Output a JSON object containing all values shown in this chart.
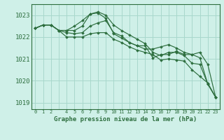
{
  "background_color": "#cff0e8",
  "grid_color": "#a8d8cc",
  "line_color": "#2d6e3e",
  "title": "Graphe pression niveau de la mer (hPa)",
  "xlim": [
    -0.5,
    23.5
  ],
  "ylim": [
    1018.7,
    1023.5
  ],
  "yticks": [
    1019,
    1020,
    1021,
    1022,
    1023
  ],
  "xtick_labels": [
    "0",
    "1",
    "2",
    "",
    "4",
    "5",
    "6",
    "7",
    "8",
    "9",
    "10",
    "11",
    "12",
    "13",
    "14",
    "15",
    "16",
    "17",
    "18",
    "19",
    "20",
    "21",
    "22",
    "23"
  ],
  "series": [
    [
      1022.4,
      1022.55,
      1022.55,
      1022.3,
      1022.3,
      1022.5,
      1022.75,
      1023.05,
      1023.1,
      1022.85,
      1022.15,
      1021.95,
      1021.75,
      1021.6,
      1021.6,
      1021.05,
      1021.2,
      1021.2,
      1021.35,
      1021.2,
      1021.2,
      1021.05,
      1019.85,
      1019.25
    ],
    [
      1022.4,
      1022.55,
      1022.55,
      1022.3,
      1022.3,
      1022.3,
      1022.5,
      1023.05,
      1023.15,
      1023.0,
      1022.55,
      1022.3,
      1022.1,
      1021.9,
      1021.7,
      1021.3,
      1021.15,
      1021.3,
      1021.3,
      1021.15,
      1020.8,
      1020.75,
      1019.85,
      1019.25
    ],
    [
      1022.4,
      1022.55,
      1022.55,
      1022.3,
      1022.2,
      1022.15,
      1022.2,
      1022.5,
      1022.65,
      1022.75,
      1022.2,
      1022.05,
      1021.75,
      1021.6,
      1021.45,
      1021.45,
      1021.55,
      1021.65,
      1021.5,
      1021.3,
      1021.2,
      1021.3,
      1020.75,
      1019.25
    ],
    [
      1022.4,
      1022.55,
      1022.55,
      1022.3,
      1022.0,
      1022.0,
      1022.0,
      1022.15,
      1022.2,
      1022.2,
      1021.9,
      1021.75,
      1021.55,
      1021.4,
      1021.3,
      1021.2,
      1020.95,
      1021.0,
      1020.95,
      1020.9,
      1020.5,
      1020.2,
      1019.9,
      1019.25
    ]
  ]
}
